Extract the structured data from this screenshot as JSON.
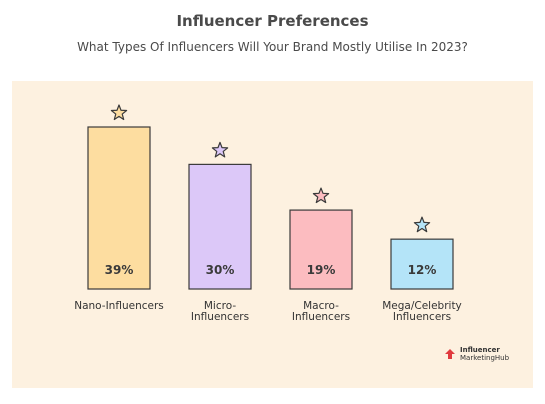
{
  "header": {
    "title": "Influencer Preferences",
    "subtitle": "What Types Of Influencers Will Your Brand Mostly Utilise In 2023?"
  },
  "logo": {
    "line1": "Influencer",
    "line2": "MarketingHub",
    "icon": "arrow-heart-icon",
    "color": "#e03a3e"
  },
  "chart_data": {
    "type": "bar",
    "title": "Influencer Preferences",
    "subtitle": "What Types Of Influencers Will Your Brand Mostly Utilise In 2023?",
    "categories": [
      "Nano-Influencers",
      "Micro-Influencers",
      "Macro-Influencers",
      "Mega/Celebrity Influencers"
    ],
    "category_lines": [
      [
        "Nano-Influencers"
      ],
      [
        "Micro-",
        "Influencers"
      ],
      [
        "Macro-",
        "Influencers"
      ],
      [
        "Mega/Celebrity",
        "Influencers"
      ]
    ],
    "values": [
      39,
      30,
      19,
      12
    ],
    "value_labels": [
      "39%",
      "30%",
      "19%",
      "12%"
    ],
    "bar_colors": [
      "#fddda0",
      "#dcc8f8",
      "#fcbcc0",
      "#b4e4f8"
    ],
    "star_colors": [
      "#fddda0",
      "#dcc8f8",
      "#fcbcc0",
      "#b4e4f8"
    ],
    "background": "#fdf1e0",
    "ylim": [
      0,
      39
    ],
    "grid": false,
    "legend": "none"
  }
}
